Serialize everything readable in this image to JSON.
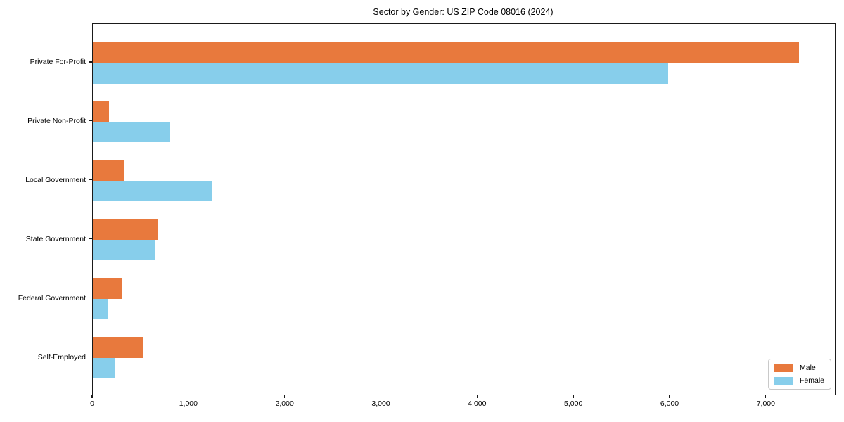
{
  "title": "Sector by Gender: US ZIP Code 08016 (2024)",
  "chart_data": {
    "type": "bar",
    "orientation": "horizontal",
    "title": "Sector by Gender: US ZIP Code 08016 (2024)",
    "xlabel": "",
    "ylabel": "",
    "grid": false,
    "legend_position": "lower right",
    "categories": [
      "Private For-Profit",
      "Private Non-Profit",
      "Local Government",
      "State Government",
      "Federal Government",
      "Self-Employed"
    ],
    "series": [
      {
        "name": "Male",
        "color": "#E8793D",
        "values": [
          7340,
          170,
          320,
          675,
          300,
          520
        ]
      },
      {
        "name": "Female",
        "color": "#87CEEB",
        "values": [
          5980,
          795,
          1240,
          640,
          155,
          230
        ]
      }
    ],
    "xlim": [
      0,
      7710
    ],
    "x_ticks": [
      0,
      1000,
      2000,
      3000,
      4000,
      5000,
      6000,
      7000
    ],
    "x_tick_labels": [
      "0",
      "1,000",
      "2,000",
      "3,000",
      "4,000",
      "5,000",
      "6,000",
      "7,000"
    ]
  }
}
